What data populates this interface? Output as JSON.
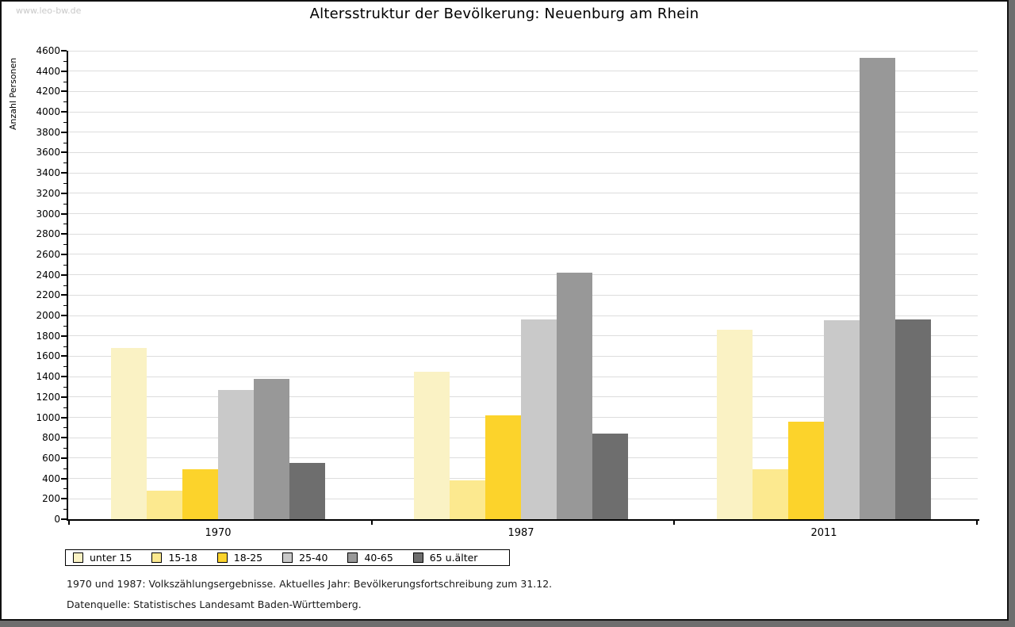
{
  "watermark": "www.leo-bw.de",
  "footnotes": {
    "line1": "1970 und 1987: Volkszählungsergebnisse. Aktuelles Jahr: Bevölkerungsfortschreibung zum 31.12.",
    "line2": "Datenquelle: Statistisches Landesamt Baden-Württemberg."
  },
  "chart_data": {
    "type": "bar",
    "title": "Altersstruktur der Bevölkerung: Neuenburg am Rhein",
    "xlabel": "",
    "ylabel": "Anzahl Personen",
    "categories": [
      "1970",
      "1987",
      "2011"
    ],
    "series": [
      {
        "name": "unter 15",
        "color": "#FAF2C4",
        "values": [
          1680,
          1450,
          1860
        ]
      },
      {
        "name": "15-18",
        "color": "#FCE98F",
        "values": [
          280,
          380,
          490
        ]
      },
      {
        "name": "18-25",
        "color": "#FCD32B",
        "values": [
          490,
          1020,
          960
        ]
      },
      {
        "name": "25-40",
        "color": "#C9C9C9",
        "values": [
          1270,
          1960,
          1950
        ]
      },
      {
        "name": "40-65",
        "color": "#989898",
        "values": [
          1380,
          2420,
          4530
        ]
      },
      {
        "name": "65 u.älter",
        "color": "#6E6E6E",
        "values": [
          550,
          840,
          1960
        ]
      }
    ],
    "ylim": [
      0,
      4600
    ],
    "ytick_step": 200,
    "yminor_step": 100,
    "grid": true,
    "legend_position": "bottom"
  },
  "colors": {
    "grid": "#DDDDDD",
    "axis": "#000000",
    "watermark": "#C9C9C9",
    "frame_shadow": "#6E6E6E"
  }
}
